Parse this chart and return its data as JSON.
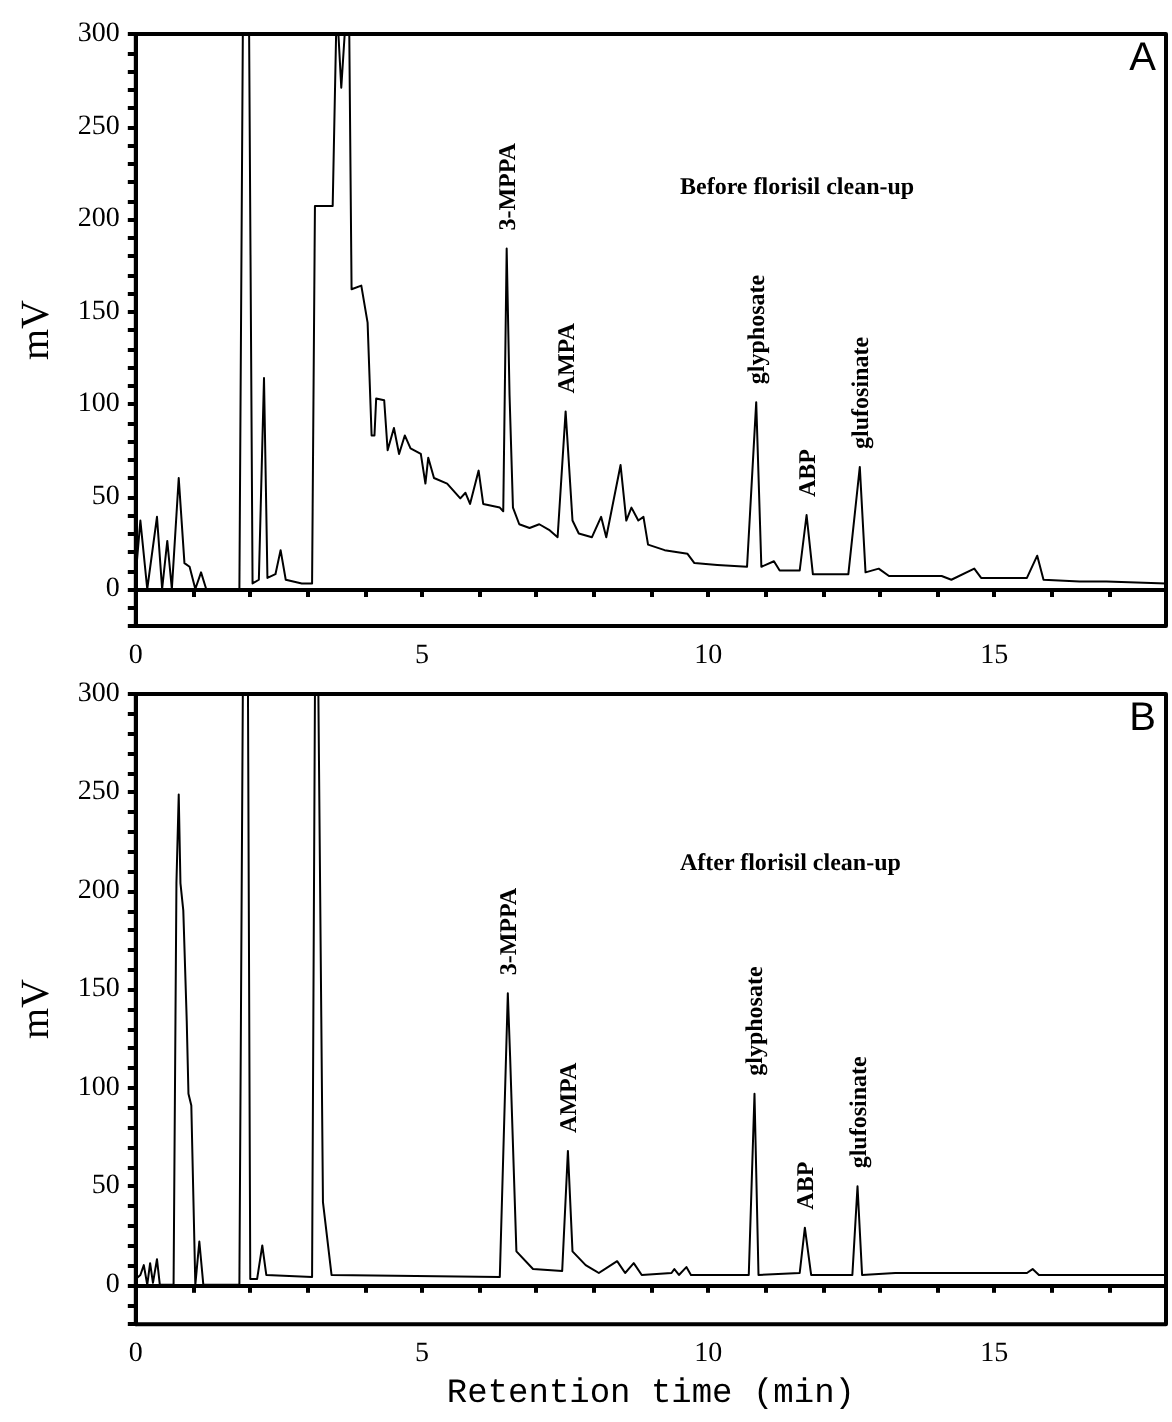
{
  "chart_data": [
    {
      "type": "line",
      "title": "A",
      "subtitle": "Before florisil clean-up",
      "ylabel": "mV",
      "color": "#000000",
      "marker": "none",
      "x": [
        0,
        0.08,
        0.2,
        0.37,
        0.46,
        0.55,
        0.63,
        0.75,
        0.85,
        0.94,
        1.04,
        1.14,
        1.23,
        1.81,
        1.87,
        1.98,
        2.04,
        2.15,
        2.24,
        2.3,
        2.44,
        2.53,
        2.62,
        2.9,
        3.08,
        3.13,
        3.44,
        3.5,
        3.54,
        3.59,
        3.65,
        3.73,
        3.77,
        3.94,
        4.05,
        4.12,
        4.17,
        4.2,
        4.34,
        4.4,
        4.51,
        4.6,
        4.7,
        4.8,
        4.98,
        5.06,
        5.11,
        5.21,
        5.44,
        5.67,
        5.76,
        5.84,
        5.99,
        6.07,
        6.36,
        6.42,
        6.48,
        6.53,
        6.59,
        6.7,
        6.88,
        7.05,
        7.22,
        7.37,
        7.51,
        7.63,
        7.74,
        7.97,
        8.13,
        8.22,
        8.47,
        8.57,
        8.66,
        8.78,
        8.87,
        8.95,
        9.24,
        9.64,
        9.76,
        10.16,
        10.68,
        10.84,
        10.93,
        11.15,
        11.25,
        11.6,
        11.72,
        11.83,
        12.45,
        12.65,
        12.75,
        12.98,
        13.16,
        14.08,
        14.25,
        14.65,
        14.77,
        15.57,
        15.75,
        15.86,
        16.49,
        16.96,
        18
      ],
      "values": [
        8,
        37,
        0,
        39,
        0,
        26,
        0,
        60,
        14,
        12,
        0,
        9,
        0,
        0,
        300,
        300,
        3,
        5,
        114,
        6,
        8,
        21,
        5,
        3,
        3,
        207,
        207,
        300,
        300,
        271,
        300,
        300,
        162,
        164,
        144,
        83,
        83,
        103,
        102,
        75,
        87,
        73,
        83,
        76,
        73,
        57,
        71,
        60,
        57,
        49,
        52,
        46,
        64,
        46,
        44,
        42,
        184,
        105,
        44,
        35,
        33,
        35,
        32,
        28,
        96,
        37,
        30,
        28,
        39,
        28,
        67,
        37,
        44,
        37,
        39,
        24,
        21,
        19,
        14,
        13,
        12,
        101,
        12,
        15,
        10,
        10,
        40,
        8,
        8,
        66,
        9,
        11,
        7,
        7,
        5,
        11,
        6,
        6,
        18,
        5,
        4,
        4,
        3
      ],
      "annotations": [
        {
          "text": "3-MPPA",
          "x": 6.48,
          "y": 184
        },
        {
          "text": "AMPA",
          "x": 7.51,
          "y": 96
        },
        {
          "text": "glyphosate",
          "x": 10.84,
          "y": 101
        },
        {
          "text": "ABP",
          "x": 11.72,
          "y": 40
        },
        {
          "text": "glufosinate",
          "x": 12.65,
          "y": 66
        }
      ],
      "xlim": [
        0,
        18
      ],
      "ylim": [
        -20,
        300
      ],
      "xticks": [
        0,
        {
          "value": 1,
          "label": null
        },
        {
          "value": 2,
          "label": null
        },
        {
          "value": 3,
          "label": null
        },
        {
          "value": 4,
          "label": null
        },
        5,
        {
          "value": 6,
          "label": null
        },
        {
          "value": 7,
          "label": null
        },
        {
          "value": 8,
          "label": null
        },
        {
          "value": 9,
          "label": null
        },
        10,
        {
          "value": 11,
          "label": null
        },
        {
          "value": 12,
          "label": null
        },
        {
          "value": 13,
          "label": null
        },
        {
          "value": 14,
          "label": null
        },
        15,
        {
          "value": 16,
          "label": null
        },
        {
          "value": 17,
          "label": null
        }
      ],
      "yticks": [
        {
          "value": -20,
          "label": null
        },
        {
          "value": -10,
          "label": null
        },
        0,
        {
          "value": 10,
          "label": null
        },
        {
          "value": 20,
          "label": null
        },
        {
          "value": 30,
          "label": null
        },
        {
          "value": 40,
          "label": null
        },
        50,
        {
          "value": 60,
          "label": null
        },
        {
          "value": 70,
          "label": null
        },
        {
          "value": 80,
          "label": null
        },
        {
          "value": 90,
          "label": null
        },
        100,
        {
          "value": 110,
          "label": null
        },
        {
          "value": 120,
          "label": null
        },
        {
          "value": 130,
          "label": null
        },
        {
          "value": 140,
          "label": null
        },
        150,
        {
          "value": 160,
          "label": null
        },
        {
          "value": 170,
          "label": null
        },
        {
          "value": 180,
          "label": null
        },
        {
          "value": 190,
          "label": null
        },
        200,
        {
          "value": 210,
          "label": null
        },
        {
          "value": 220,
          "label": null
        },
        {
          "value": 230,
          "label": null
        },
        {
          "value": 240,
          "label": null
        },
        250,
        {
          "value": 260,
          "label": null
        },
        {
          "value": 270,
          "label": null
        },
        {
          "value": 280,
          "label": null
        },
        {
          "value": 290,
          "label": null
        },
        300
      ]
    },
    {
      "type": "line",
      "title": "B",
      "subtitle": "After florisil clean-up",
      "xlabel": "Retention time (min)",
      "ylabel": "mV",
      "color": "#000000",
      "marker": "none",
      "x": [
        0,
        0.08,
        0.14,
        0.2,
        0.25,
        0.3,
        0.37,
        0.42,
        0.66,
        0.71,
        0.75,
        0.78,
        0.83,
        0.89,
        0.92,
        0.97,
        1.04,
        1.11,
        1.18,
        1.81,
        1.87,
        1.96,
        2.0,
        2.12,
        2.21,
        2.28,
        3.08,
        3.13,
        3.19,
        3.27,
        3.42,
        6.36,
        6.5,
        6.54,
        6.65,
        6.94,
        7.45,
        7.55,
        7.63,
        7.86,
        8.09,
        8.41,
        8.55,
        8.7,
        8.84,
        9.36,
        9.41,
        9.49,
        9.62,
        9.7,
        10.71,
        10.81,
        10.88,
        11.6,
        11.69,
        11.8,
        12.52,
        12.61,
        12.69,
        13.27,
        15.57,
        15.67,
        15.78,
        18
      ],
      "values": [
        3,
        5,
        10,
        0,
        11,
        1,
        13,
        0,
        0,
        204,
        249,
        204,
        190,
        134,
        97,
        91,
        0,
        22,
        0,
        0,
        300,
        300,
        3,
        3,
        20,
        5,
        4,
        300,
        300,
        42,
        5,
        4,
        148,
        116,
        17,
        8,
        7,
        68,
        17,
        10,
        6,
        12,
        6,
        11,
        5,
        6,
        8,
        5,
        9,
        5,
        5,
        97,
        5,
        6,
        29,
        5,
        5,
        50,
        5,
        6,
        6,
        8,
        5,
        5
      ],
      "annotations": [
        {
          "text": "3-MPPA",
          "x": 6.5,
          "y": 148
        },
        {
          "text": "AMPA",
          "x": 7.55,
          "y": 68
        },
        {
          "text": "glyphosate",
          "x": 10.81,
          "y": 97
        },
        {
          "text": "ABP",
          "x": 11.69,
          "y": 29
        },
        {
          "text": "glufosinate",
          "x": 12.61,
          "y": 50
        }
      ],
      "xlim": [
        0,
        18
      ],
      "ylim": [
        -20,
        300
      ],
      "xticks": [
        0,
        {
          "value": 1,
          "label": null
        },
        {
          "value": 2,
          "label": null
        },
        {
          "value": 3,
          "label": null
        },
        {
          "value": 4,
          "label": null
        },
        5,
        {
          "value": 6,
          "label": null
        },
        {
          "value": 7,
          "label": null
        },
        {
          "value": 8,
          "label": null
        },
        {
          "value": 9,
          "label": null
        },
        10,
        {
          "value": 11,
          "label": null
        },
        {
          "value": 12,
          "label": null
        },
        {
          "value": 13,
          "label": null
        },
        {
          "value": 14,
          "label": null
        },
        15,
        {
          "value": 16,
          "label": null
        },
        {
          "value": 17,
          "label": null
        }
      ],
      "yticks": [
        {
          "value": -20,
          "label": null
        },
        {
          "value": -10,
          "label": null
        },
        0,
        {
          "value": 10,
          "label": null
        },
        {
          "value": 20,
          "label": null
        },
        {
          "value": 30,
          "label": null
        },
        {
          "value": 40,
          "label": null
        },
        50,
        {
          "value": 60,
          "label": null
        },
        {
          "value": 70,
          "label": null
        },
        {
          "value": 80,
          "label": null
        },
        {
          "value": 90,
          "label": null
        },
        100,
        {
          "value": 110,
          "label": null
        },
        {
          "value": 120,
          "label": null
        },
        {
          "value": 130,
          "label": null
        },
        {
          "value": 140,
          "label": null
        },
        150,
        {
          "value": 160,
          "label": null
        },
        {
          "value": 170,
          "label": null
        },
        {
          "value": 180,
          "label": null
        },
        {
          "value": 190,
          "label": null
        },
        200,
        {
          "value": 210,
          "label": null
        },
        {
          "value": 220,
          "label": null
        },
        {
          "value": 230,
          "label": null
        },
        {
          "value": 240,
          "label": null
        },
        250,
        {
          "value": 260,
          "label": null
        },
        {
          "value": 270,
          "label": null
        },
        {
          "value": 280,
          "label": null
        },
        {
          "value": 290,
          "label": null
        },
        300
      ]
    }
  ]
}
